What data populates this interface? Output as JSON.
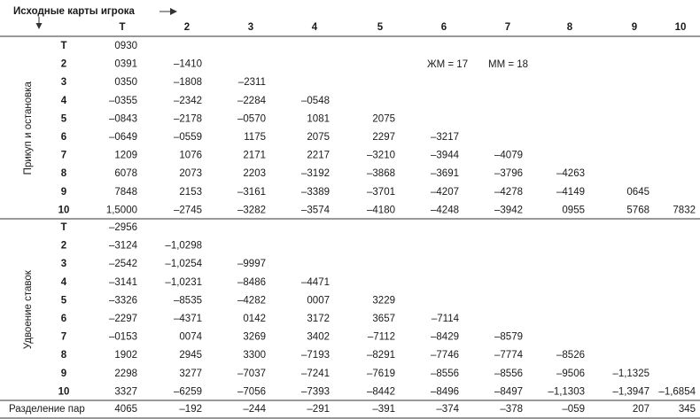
{
  "header": {
    "title": "Исходные карты игрока",
    "columns": [
      "T",
      "2",
      "3",
      "4",
      "5",
      "6",
      "7",
      "8",
      "9",
      "10"
    ]
  },
  "groups": [
    {
      "label": "Прикуп и остановка",
      "rows": [
        {
          "label": "T",
          "cells": [
            "0930"
          ]
        },
        {
          "label": "2",
          "cells": [
            "0391",
            "–1410"
          ]
        },
        {
          "label": "3",
          "cells": [
            "0350",
            "–1808",
            "–2311"
          ]
        },
        {
          "label": "4",
          "cells": [
            "–0355",
            "–2342",
            "–2284",
            "–0548"
          ]
        },
        {
          "label": "5",
          "cells": [
            "–0843",
            "–2178",
            "–0570",
            "1081",
            "2075"
          ]
        },
        {
          "label": "6",
          "cells": [
            "–0649",
            "–0559",
            "1175",
            "2075",
            "2297",
            "–3217"
          ]
        },
        {
          "label": "7",
          "cells": [
            "1209",
            "1076",
            "2171",
            "2217",
            "–3210",
            "–3944",
            "–4079"
          ]
        },
        {
          "label": "8",
          "cells": [
            "6078",
            "2073",
            "2203",
            "–3192",
            "–3868",
            "–3691",
            "–3796",
            "–4263"
          ]
        },
        {
          "label": "9",
          "cells": [
            "7848",
            "2153",
            "–3161",
            "–3389",
            "–3701",
            "–4207",
            "–4278",
            "–4149",
            "0645"
          ]
        },
        {
          "label": "10",
          "cells": [
            "1,5000",
            "–2745",
            "–3282",
            "–3574",
            "–4180",
            "–4248",
            "–3942",
            "0955",
            "5768",
            "7832"
          ]
        }
      ]
    },
    {
      "label": "Удвоение ставок",
      "rows": [
        {
          "label": "T",
          "cells": [
            "–2956"
          ]
        },
        {
          "label": "2",
          "cells": [
            "–3124",
            "–1,0298"
          ]
        },
        {
          "label": "3",
          "cells": [
            "–2542",
            "–1,0254",
            "–9997"
          ]
        },
        {
          "label": "4",
          "cells": [
            "–3141",
            "–1,0231",
            "–8486",
            "–4471"
          ]
        },
        {
          "label": "5",
          "cells": [
            "–3326",
            "–8535",
            "–4282",
            "0007",
            "3229"
          ]
        },
        {
          "label": "6",
          "cells": [
            "–2297",
            "–4371",
            "0142",
            "3172",
            "3657",
            "–7114"
          ]
        },
        {
          "label": "7",
          "cells": [
            "–0153",
            "0074",
            "3269",
            "3402",
            "–7112",
            "–8429",
            "–8579"
          ]
        },
        {
          "label": "8",
          "cells": [
            "1902",
            "2945",
            "3300",
            "–7193",
            "–8291",
            "–7746",
            "–7774",
            "–8526"
          ]
        },
        {
          "label": "9",
          "cells": [
            "2298",
            "3277",
            "–7037",
            "–7241",
            "–7619",
            "–8556",
            "–8556",
            "–9506",
            "–1,1325"
          ]
        },
        {
          "label": "10",
          "cells": [
            "3327",
            "–6259",
            "–7056",
            "–7393",
            "–8442",
            "–8496",
            "–8497",
            "–1,1303",
            "–1,3947",
            "–1,6854"
          ]
        }
      ]
    }
  ],
  "split": {
    "label": "Разделение пар",
    "cells": [
      "4065",
      "–192",
      "–244",
      "–291",
      "–391",
      "–374",
      "–378",
      "–059",
      "207",
      "345"
    ]
  },
  "notes": [
    "ЖМ = 17",
    "ММ = 18"
  ]
}
